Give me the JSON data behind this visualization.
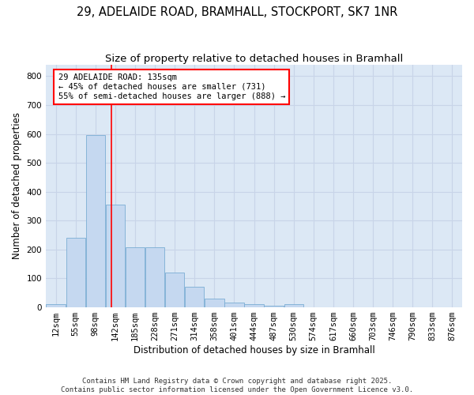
{
  "title_line1": "29, ADELAIDE ROAD, BRAMHALL, STOCKPORT, SK7 1NR",
  "title_line2": "Size of property relative to detached houses in Bramhall",
  "xlabel": "Distribution of detached houses by size in Bramhall",
  "ylabel": "Number of detached properties",
  "categories": [
    "12sqm",
    "55sqm",
    "98sqm",
    "142sqm",
    "185sqm",
    "228sqm",
    "271sqm",
    "314sqm",
    "358sqm",
    "401sqm",
    "444sqm",
    "487sqm",
    "530sqm",
    "574sqm",
    "617sqm",
    "660sqm",
    "703sqm",
    "746sqm",
    "790sqm",
    "833sqm",
    "876sqm"
  ],
  "values": [
    10,
    242,
    597,
    355,
    207,
    207,
    120,
    70,
    30,
    17,
    10,
    5,
    10,
    0,
    0,
    0,
    0,
    0,
    0,
    0,
    0
  ],
  "bar_color": "#c5d8f0",
  "bar_edge_color": "#7badd4",
  "red_line_x": 2.82,
  "annotation_text": "29 ADELAIDE ROAD: 135sqm\n← 45% of detached houses are smaller (731)\n55% of semi-detached houses are larger (888) →",
  "annotation_box_color": "white",
  "annotation_box_edge_color": "red",
  "red_line_color": "red",
  "ylim": [
    0,
    840
  ],
  "yticks": [
    0,
    100,
    200,
    300,
    400,
    500,
    600,
    700,
    800
  ],
  "grid_color": "#c8d4e8",
  "bg_color": "#dce8f5",
  "footer": "Contains HM Land Registry data © Crown copyright and database right 2025.\nContains public sector information licensed under the Open Government Licence v3.0.",
  "title_fontsize": 10.5,
  "subtitle_fontsize": 9.5,
  "axis_label_fontsize": 8.5,
  "tick_fontsize": 7.5,
  "annotation_fontsize": 7.5,
  "footer_fontsize": 6.5
}
